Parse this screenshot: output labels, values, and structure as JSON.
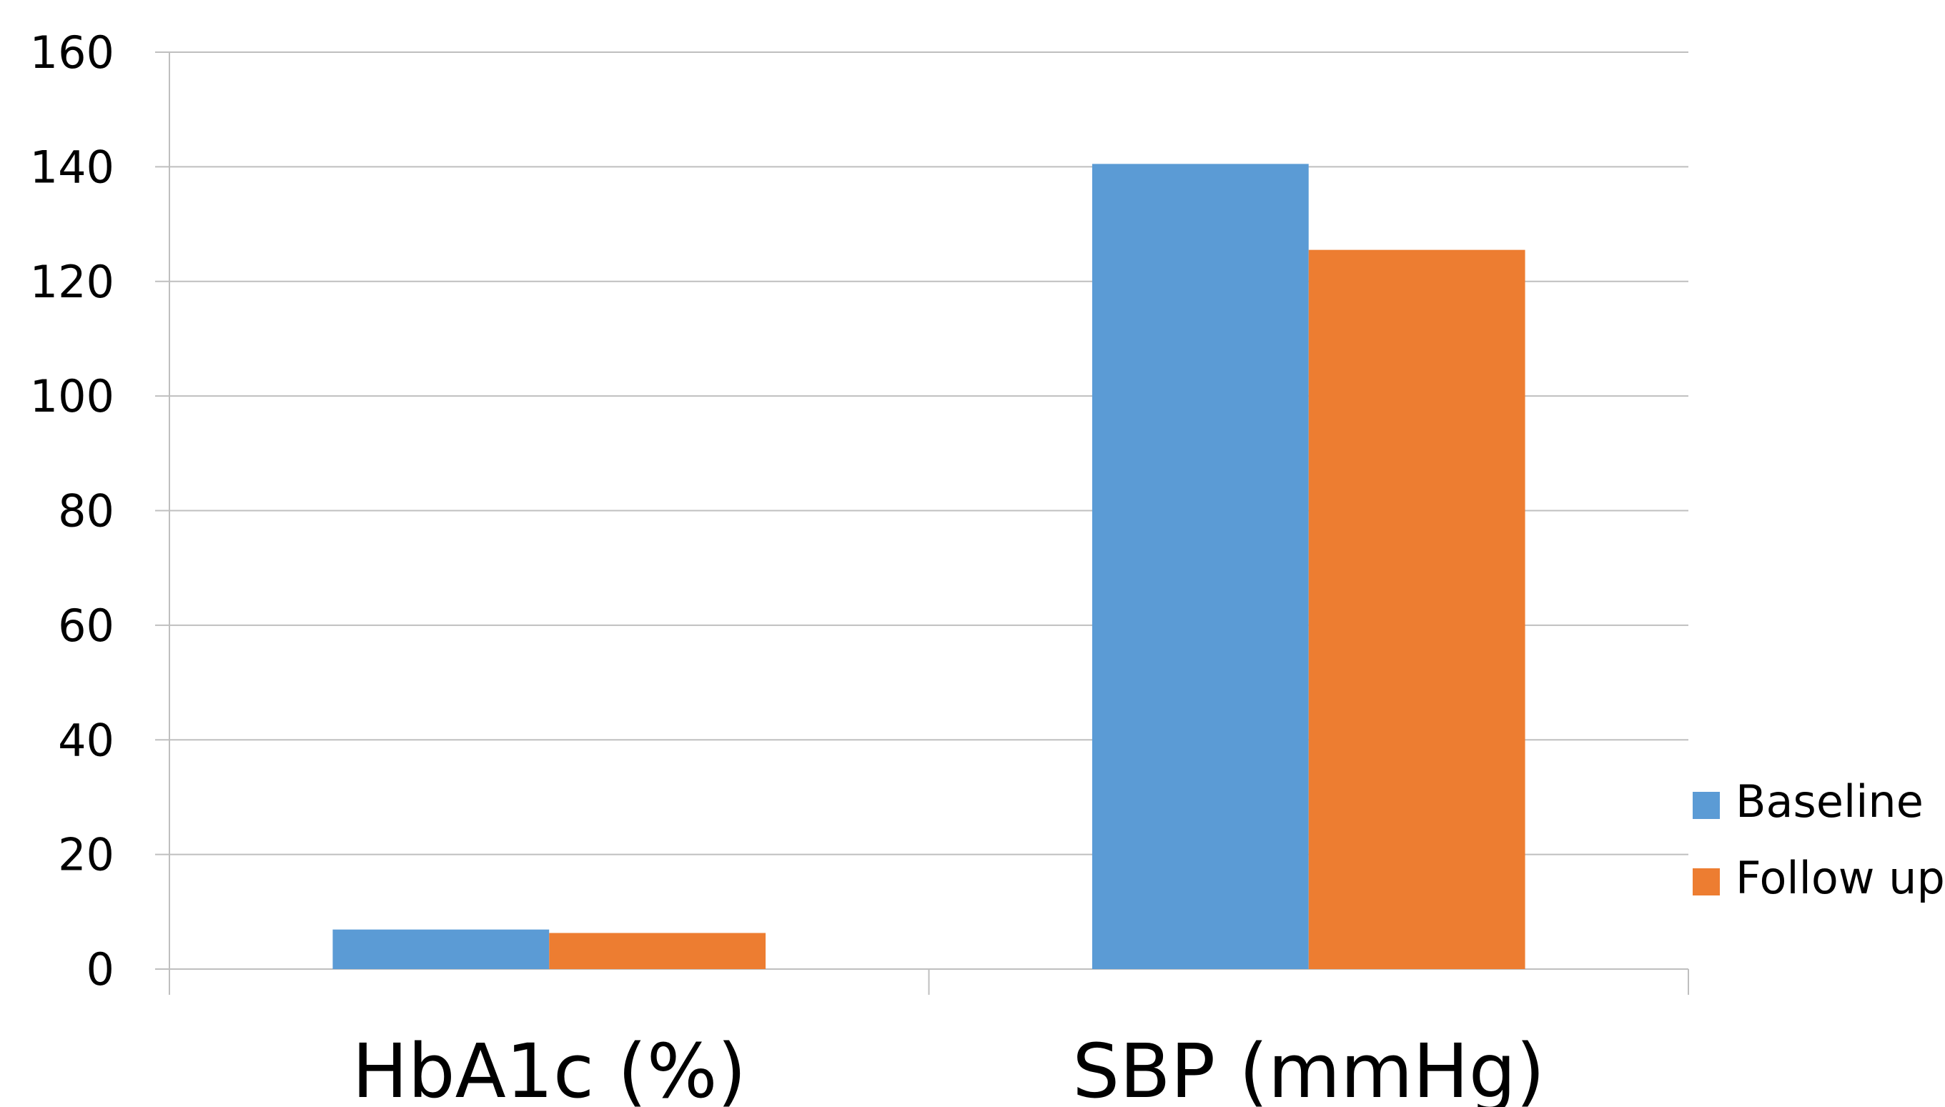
{
  "chart_data": {
    "type": "bar",
    "title": "",
    "xlabel": "",
    "ylabel": "",
    "categories": [
      "HbA1c (%)",
      "SBP (mmHg)"
    ],
    "series": [
      {
        "name": "Baseline",
        "values": [
          6.9,
          140.5
        ],
        "color": "#5B9BD5"
      },
      {
        "name": "Follow up",
        "values": [
          6.3,
          125.5
        ],
        "color": "#ED7D31"
      }
    ],
    "ylim": [
      0,
      160
    ],
    "yticks": [
      0,
      20,
      40,
      60,
      80,
      100,
      120,
      140,
      160
    ],
    "grid": true,
    "legend_position": "right",
    "gridline_color": "#BFBFBF"
  }
}
